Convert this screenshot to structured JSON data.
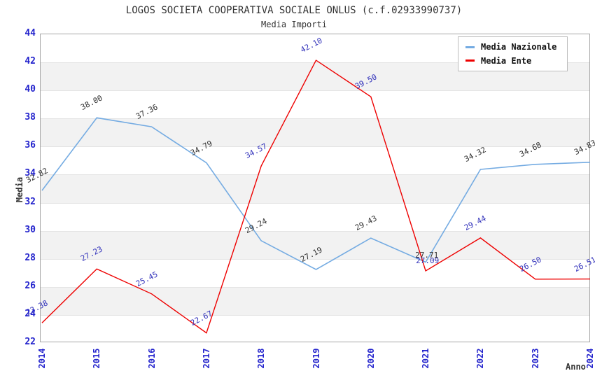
{
  "title": "LOGOS SOCIETA COOPERATIVA SOCIALE ONLUS (c.f.02933990737)",
  "subtitle": "Media Importi",
  "chart_data": {
    "type": "line",
    "x": [
      2014,
      2015,
      2016,
      2017,
      2018,
      2019,
      2020,
      2021,
      2022,
      2023,
      2024
    ],
    "xlabel": "Anno",
    "ylabel": "Media",
    "ylim": [
      22,
      44
    ],
    "ytick_step": 2,
    "grid": "horizontal-bands-alternating",
    "legend_position": "top-right",
    "series": [
      {
        "name": "Media Nazionale",
        "color": "#74abe2",
        "label_color": "#333333",
        "values": [
          32.82,
          38.0,
          37.36,
          34.79,
          29.24,
          27.19,
          29.43,
          27.71,
          34.32,
          34.68,
          34.83
        ]
      },
      {
        "name": "Media Ente",
        "color": "#ee0000",
        "label_color": "#3333bb",
        "values": [
          23.38,
          27.23,
          25.45,
          22.67,
          34.57,
          42.1,
          39.5,
          27.09,
          29.44,
          26.5,
          26.51
        ]
      }
    ],
    "axis_tick_color": "#2222cc",
    "band_color": "#f2f2f2",
    "gridline_color": "#e4e4e4"
  }
}
